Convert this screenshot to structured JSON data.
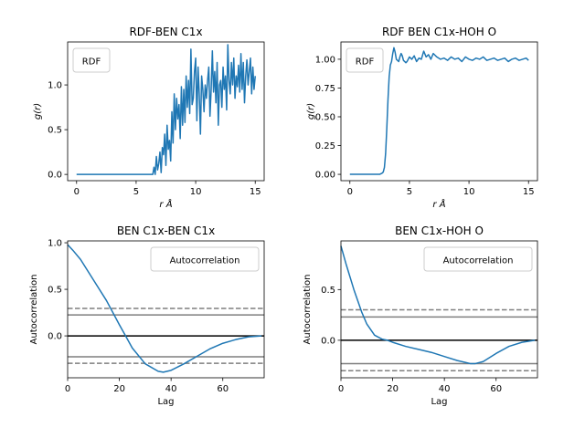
{
  "chart_data": [
    {
      "type": "line",
      "title": "RDF-BEN C1x",
      "xlabel": "r Å",
      "ylabel": "g(r)",
      "xlim": [
        -0.75,
        15.75
      ],
      "ylim": [
        -0.07,
        1.48
      ],
      "xticks": [
        "0",
        "5",
        "10",
        "15"
      ],
      "yticks": [
        "0.0",
        "0.5",
        "1.0"
      ],
      "legend": {
        "label": "RDF",
        "placement": "top-left"
      },
      "color": "#1f77b4",
      "series": [
        {
          "name": "RDF",
          "x": [
            0,
            0.5,
            1,
            1.5,
            2,
            2.5,
            3,
            3.5,
            4,
            4.5,
            5,
            5.5,
            6,
            6.1,
            6.2,
            6.3,
            6.4,
            6.5,
            6.6,
            6.7,
            6.8,
            6.9,
            7.0,
            7.1,
            7.2,
            7.3,
            7.4,
            7.5,
            7.6,
            7.7,
            7.8,
            7.9,
            8.0,
            8.1,
            8.2,
            8.3,
            8.4,
            8.5,
            8.6,
            8.7,
            8.8,
            8.9,
            9.0,
            9.1,
            9.2,
            9.3,
            9.4,
            9.5,
            9.6,
            9.7,
            9.8,
            9.9,
            10.0,
            10.1,
            10.2,
            10.3,
            10.4,
            10.5,
            10.6,
            10.7,
            10.8,
            10.9,
            11.0,
            11.1,
            11.2,
            11.3,
            11.4,
            11.5,
            11.6,
            11.7,
            11.8,
            11.9,
            12.0,
            12.1,
            12.2,
            12.3,
            12.4,
            12.5,
            12.6,
            12.7,
            12.8,
            12.9,
            13.0,
            13.1,
            13.2,
            13.3,
            13.4,
            13.5,
            13.6,
            13.7,
            13.8,
            13.9,
            14.0,
            14.1,
            14.2,
            14.3,
            14.4,
            14.5,
            14.6,
            14.7,
            14.8,
            14.9,
            15.0
          ],
          "y": [
            0,
            0,
            0,
            0,
            0,
            0,
            0,
            0,
            0,
            0,
            0,
            0,
            0,
            0,
            0,
            0,
            0,
            0.08,
            0.0,
            0.2,
            0.05,
            0.12,
            0.25,
            0.02,
            0.3,
            0.22,
            0.45,
            0.1,
            0.55,
            0.28,
            0.38,
            0.15,
            0.7,
            0.35,
            0.9,
            0.5,
            0.85,
            0.62,
            0.78,
            0.4,
            0.98,
            0.55,
            0.95,
            0.58,
            1.1,
            0.75,
            1.05,
            0.68,
            1.4,
            0.78,
            0.85,
            1.15,
            1.3,
            0.6,
            1.2,
            0.9,
            0.45,
            1.1,
            0.95,
            0.7,
            1.0,
            0.85,
            1.05,
            1.2,
            0.65,
            0.95,
            1.38,
            0.92,
            1.15,
            0.8,
            1.25,
            0.55,
            1.0,
            1.05,
            0.75,
            1.2,
            0.95,
            1.1,
            0.72,
            1.45,
            1.05,
            0.9,
            1.25,
            1.0,
            1.3,
            0.85,
            1.1,
            0.98,
            1.22,
            0.92,
            1.35,
            0.95,
            1.25,
            0.8,
            1.1,
            1.28,
            1.0,
            1.15,
            1.3,
            0.9,
            1.2,
            0.95,
            1.1
          ]
        }
      ]
    },
    {
      "type": "line",
      "title": "RDF BEN C1x-HOH O",
      "xlabel": "r Å",
      "ylabel": "g(r)",
      "xlim": [
        -0.75,
        15.75
      ],
      "ylim": [
        -0.055,
        1.15
      ],
      "xticks": [
        "0",
        "5",
        "10",
        "15"
      ],
      "yticks": [
        "0.00",
        "0.25",
        "0.50",
        "0.75",
        "1.00"
      ],
      "legend": {
        "label": "RDF",
        "placement": "top-left"
      },
      "color": "#1f77b4",
      "series": [
        {
          "name": "RDF",
          "x": [
            0,
            0.5,
            1.0,
            1.5,
            2.0,
            2.5,
            2.7,
            2.8,
            2.9,
            3.0,
            3.1,
            3.2,
            3.3,
            3.4,
            3.5,
            3.6,
            3.7,
            3.8,
            3.9,
            4.0,
            4.1,
            4.2,
            4.3,
            4.4,
            4.5,
            4.6,
            4.7,
            4.8,
            4.9,
            5.0,
            5.2,
            5.4,
            5.6,
            5.8,
            6.0,
            6.2,
            6.4,
            6.6,
            6.8,
            7.0,
            7.3,
            7.6,
            7.9,
            8.2,
            8.5,
            8.8,
            9.1,
            9.4,
            9.7,
            10.0,
            10.3,
            10.6,
            10.9,
            11.2,
            11.5,
            11.8,
            12.1,
            12.4,
            12.7,
            13.0,
            13.3,
            13.6,
            13.9,
            14.2,
            14.5,
            14.8,
            15.0
          ],
          "y": [
            0,
            0,
            0,
            0,
            0,
            0,
            0.01,
            0.02,
            0.06,
            0.18,
            0.4,
            0.65,
            0.85,
            0.95,
            0.98,
            1.05,
            1.1,
            1.06,
            1.0,
            0.99,
            0.98,
            1.02,
            1.05,
            1.03,
            0.99,
            0.98,
            0.97,
            0.98,
            1.0,
            1.02,
            1.0,
            1.03,
            0.98,
            1.01,
            1.0,
            1.07,
            1.02,
            1.04,
            1.0,
            1.05,
            1.02,
            1.0,
            1.01,
            0.99,
            1.02,
            1.0,
            1.01,
            0.98,
            1.02,
            1.0,
            0.99,
            1.01,
            1.0,
            1.02,
            0.99,
            1.0,
            1.01,
            0.99,
            1.0,
            1.01,
            0.98,
            1.0,
            1.01,
            0.99,
            1.0,
            1.01,
            0.99
          ]
        }
      ]
    },
    {
      "type": "line",
      "title": "BEN C1x-BEN C1x",
      "xlabel": "Lag",
      "ylabel": "Autocorrelation",
      "xlim": [
        0,
        76
      ],
      "ylim": [
        -0.45,
        1.02
      ],
      "xticks": [
        "0",
        "20",
        "40",
        "60"
      ],
      "yticks": [
        "−0.5",
        "0.0",
        "0.5",
        "1.0"
      ],
      "legend": {
        "label": "Autocorrelation",
        "placement": "top-right"
      },
      "color": "#1f77b4",
      "confidence_solid": [
        0.225,
        -0.225
      ],
      "confidence_dashed": [
        0.295,
        -0.295
      ],
      "series": [
        {
          "name": "Autocorrelation",
          "x": [
            0,
            2,
            5,
            10,
            15,
            20,
            22,
            25,
            30,
            35,
            37,
            40,
            45,
            50,
            55,
            60,
            65,
            70,
            75
          ],
          "y": [
            0.98,
            0.92,
            0.82,
            0.6,
            0.38,
            0.12,
            0.02,
            -0.13,
            -0.3,
            -0.38,
            -0.39,
            -0.37,
            -0.3,
            -0.22,
            -0.14,
            -0.08,
            -0.04,
            -0.01,
            0.0
          ]
        }
      ]
    },
    {
      "type": "line",
      "title": "BEN C1x-HOH O",
      "xlabel": "Lag",
      "ylabel": "Autocorrelation",
      "xlim": [
        0,
        76
      ],
      "ylim": [
        -0.37,
        0.98
      ],
      "xticks": [
        "0",
        "20",
        "40",
        "60"
      ],
      "yticks": [
        "0.0",
        "0.5"
      ],
      "legend": {
        "label": "Autocorrelation",
        "placement": "top-right"
      },
      "color": "#1f77b4",
      "confidence_solid": [
        0.23,
        -0.23
      ],
      "confidence_dashed": [
        0.3,
        -0.3
      ],
      "series": [
        {
          "name": "Autocorrelation",
          "x": [
            0,
            2,
            5,
            8,
            10,
            13,
            16,
            18,
            20,
            25,
            30,
            35,
            40,
            45,
            50,
            52,
            55,
            60,
            65,
            70,
            75
          ],
          "y": [
            0.93,
            0.75,
            0.5,
            0.28,
            0.16,
            0.05,
            0.01,
            0.0,
            -0.02,
            -0.06,
            -0.09,
            -0.12,
            -0.16,
            -0.2,
            -0.23,
            -0.23,
            -0.21,
            -0.13,
            -0.06,
            -0.02,
            0.0
          ]
        }
      ]
    }
  ]
}
